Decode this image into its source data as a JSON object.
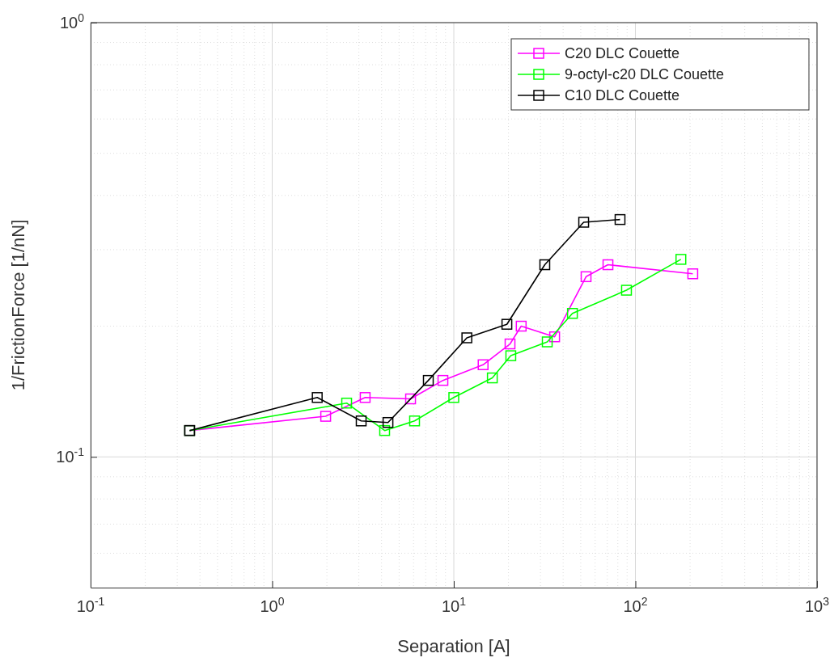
{
  "chart_data": {
    "type": "line",
    "xlabel": "Separation [A]",
    "ylabel": "1/FrictionForce [1/nN]",
    "log": "xy",
    "grid": true,
    "legend": "top right",
    "marker": "square",
    "line_style": "solid",
    "xlim": [
      0.1,
      1000
    ],
    "xticks": [
      {
        "value": 0.1,
        "label": "10$^{-1}$"
      },
      {
        "value": 1,
        "label": "10$^{0}$"
      },
      {
        "value": 10,
        "label": "10$^{1}$"
      },
      {
        "value": 100,
        "label": "10$^{2}$"
      },
      {
        "value": 1000,
        "label": "10$^{3}$"
      }
    ],
    "ylim": [
      0.05,
      1
    ],
    "yticks": [
      {
        "value": 0.1,
        "label": "10$^{-1}$"
      },
      {
        "value": 1,
        "label": "10$^{0}$"
      }
    ],
    "series": [
      {
        "name": "C20 DLC Couette",
        "color": "#ff00ff",
        "x": [
          0.351,
          1.97,
          3.25,
          5.78,
          8.71,
          14.5,
          20.4,
          23.5,
          35.9,
          53.5,
          70.6,
          207
        ],
        "values": [
          0.115,
          0.124,
          0.137,
          0.136,
          0.15,
          0.163,
          0.182,
          0.2,
          0.189,
          0.26,
          0.277,
          0.264
        ]
      },
      {
        "name": "9-octyl-c20 DLC Couette",
        "color": "#00ff00",
        "x": [
          0.351,
          2.57,
          4.16,
          6.08,
          10.0,
          16.3,
          20.6,
          32.7,
          45.0,
          89.3,
          178
        ],
        "values": [
          0.115,
          0.133,
          0.115,
          0.121,
          0.137,
          0.152,
          0.171,
          0.184,
          0.214,
          0.242,
          0.285
        ]
      },
      {
        "name": "C10 DLC Couette",
        "color": "#000000",
        "x": [
          0.351,
          1.77,
          3.09,
          4.34,
          7.24,
          11.8,
          19.6,
          31.7,
          51.9,
          82.3
        ],
        "values": [
          0.115,
          0.137,
          0.121,
          0.12,
          0.15,
          0.188,
          0.202,
          0.277,
          0.347,
          0.352
        ]
      }
    ]
  }
}
